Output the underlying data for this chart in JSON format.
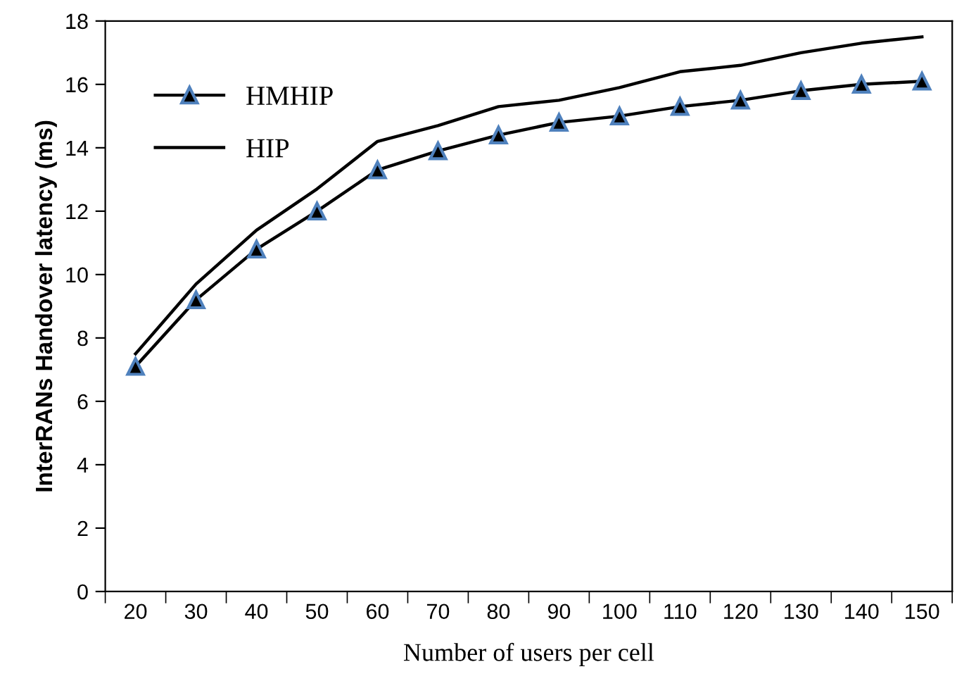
{
  "chart_data": {
    "type": "line",
    "xlabel": "Number of users per cell",
    "ylabel": "InterRANs Handover latency (ms)",
    "categories": [
      "20",
      "30",
      "40",
      "50",
      "60",
      "70",
      "80",
      "90",
      "100",
      "110",
      "120",
      "130",
      "140",
      "150"
    ],
    "series": [
      {
        "name": "HMHIP",
        "color": "#000000",
        "marker": "triangle",
        "values": [
          7.1,
          9.2,
          10.8,
          12.0,
          13.3,
          13.9,
          14.4,
          14.8,
          15.0,
          15.3,
          15.5,
          15.8,
          16.0,
          16.1
        ]
      },
      {
        "name": "HIP",
        "color": "#000000",
        "marker": "none",
        "values": [
          7.5,
          9.7,
          11.4,
          12.7,
          14.2,
          14.7,
          15.3,
          15.5,
          15.9,
          16.4,
          16.6,
          17.0,
          17.3,
          17.5
        ]
      }
    ],
    "ylim": [
      0,
      18
    ],
    "yticks": [
      0,
      2,
      4,
      6,
      8,
      10,
      12,
      14,
      16,
      18
    ],
    "grid": false,
    "legend": "top left",
    "line_style": "solid"
  }
}
